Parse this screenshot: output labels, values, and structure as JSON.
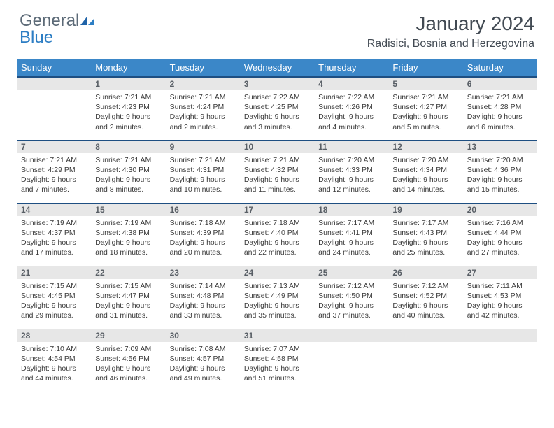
{
  "logo": {
    "text_general": "General",
    "text_blue": "Blue"
  },
  "header": {
    "month_title": "January 2024",
    "location": "Radisici, Bosnia and Herzegovina"
  },
  "colors": {
    "header_bg": "#3b87c8",
    "header_border": "#1e4f82",
    "daynum_bg": "#e7e7e7",
    "daynum_fg": "#595f66",
    "text": "#3a3a3a",
    "logo_gray": "#5c6a77",
    "logo_blue": "#2d7ec4"
  },
  "weekdays": [
    "Sunday",
    "Monday",
    "Tuesday",
    "Wednesday",
    "Thursday",
    "Friday",
    "Saturday"
  ],
  "weeks": [
    [
      null,
      {
        "n": "1",
        "sr": "Sunrise: 7:21 AM",
        "ss": "Sunset: 4:23 PM",
        "d1": "Daylight: 9 hours",
        "d2": "and 2 minutes."
      },
      {
        "n": "2",
        "sr": "Sunrise: 7:21 AM",
        "ss": "Sunset: 4:24 PM",
        "d1": "Daylight: 9 hours",
        "d2": "and 2 minutes."
      },
      {
        "n": "3",
        "sr": "Sunrise: 7:22 AM",
        "ss": "Sunset: 4:25 PM",
        "d1": "Daylight: 9 hours",
        "d2": "and 3 minutes."
      },
      {
        "n": "4",
        "sr": "Sunrise: 7:22 AM",
        "ss": "Sunset: 4:26 PM",
        "d1": "Daylight: 9 hours",
        "d2": "and 4 minutes."
      },
      {
        "n": "5",
        "sr": "Sunrise: 7:21 AM",
        "ss": "Sunset: 4:27 PM",
        "d1": "Daylight: 9 hours",
        "d2": "and 5 minutes."
      },
      {
        "n": "6",
        "sr": "Sunrise: 7:21 AM",
        "ss": "Sunset: 4:28 PM",
        "d1": "Daylight: 9 hours",
        "d2": "and 6 minutes."
      }
    ],
    [
      {
        "n": "7",
        "sr": "Sunrise: 7:21 AM",
        "ss": "Sunset: 4:29 PM",
        "d1": "Daylight: 9 hours",
        "d2": "and 7 minutes."
      },
      {
        "n": "8",
        "sr": "Sunrise: 7:21 AM",
        "ss": "Sunset: 4:30 PM",
        "d1": "Daylight: 9 hours",
        "d2": "and 8 minutes."
      },
      {
        "n": "9",
        "sr": "Sunrise: 7:21 AM",
        "ss": "Sunset: 4:31 PM",
        "d1": "Daylight: 9 hours",
        "d2": "and 10 minutes."
      },
      {
        "n": "10",
        "sr": "Sunrise: 7:21 AM",
        "ss": "Sunset: 4:32 PM",
        "d1": "Daylight: 9 hours",
        "d2": "and 11 minutes."
      },
      {
        "n": "11",
        "sr": "Sunrise: 7:20 AM",
        "ss": "Sunset: 4:33 PM",
        "d1": "Daylight: 9 hours",
        "d2": "and 12 minutes."
      },
      {
        "n": "12",
        "sr": "Sunrise: 7:20 AM",
        "ss": "Sunset: 4:34 PM",
        "d1": "Daylight: 9 hours",
        "d2": "and 14 minutes."
      },
      {
        "n": "13",
        "sr": "Sunrise: 7:20 AM",
        "ss": "Sunset: 4:36 PM",
        "d1": "Daylight: 9 hours",
        "d2": "and 15 minutes."
      }
    ],
    [
      {
        "n": "14",
        "sr": "Sunrise: 7:19 AM",
        "ss": "Sunset: 4:37 PM",
        "d1": "Daylight: 9 hours",
        "d2": "and 17 minutes."
      },
      {
        "n": "15",
        "sr": "Sunrise: 7:19 AM",
        "ss": "Sunset: 4:38 PM",
        "d1": "Daylight: 9 hours",
        "d2": "and 18 minutes."
      },
      {
        "n": "16",
        "sr": "Sunrise: 7:18 AM",
        "ss": "Sunset: 4:39 PM",
        "d1": "Daylight: 9 hours",
        "d2": "and 20 minutes."
      },
      {
        "n": "17",
        "sr": "Sunrise: 7:18 AM",
        "ss": "Sunset: 4:40 PM",
        "d1": "Daylight: 9 hours",
        "d2": "and 22 minutes."
      },
      {
        "n": "18",
        "sr": "Sunrise: 7:17 AM",
        "ss": "Sunset: 4:41 PM",
        "d1": "Daylight: 9 hours",
        "d2": "and 24 minutes."
      },
      {
        "n": "19",
        "sr": "Sunrise: 7:17 AM",
        "ss": "Sunset: 4:43 PM",
        "d1": "Daylight: 9 hours",
        "d2": "and 25 minutes."
      },
      {
        "n": "20",
        "sr": "Sunrise: 7:16 AM",
        "ss": "Sunset: 4:44 PM",
        "d1": "Daylight: 9 hours",
        "d2": "and 27 minutes."
      }
    ],
    [
      {
        "n": "21",
        "sr": "Sunrise: 7:15 AM",
        "ss": "Sunset: 4:45 PM",
        "d1": "Daylight: 9 hours",
        "d2": "and 29 minutes."
      },
      {
        "n": "22",
        "sr": "Sunrise: 7:15 AM",
        "ss": "Sunset: 4:47 PM",
        "d1": "Daylight: 9 hours",
        "d2": "and 31 minutes."
      },
      {
        "n": "23",
        "sr": "Sunrise: 7:14 AM",
        "ss": "Sunset: 4:48 PM",
        "d1": "Daylight: 9 hours",
        "d2": "and 33 minutes."
      },
      {
        "n": "24",
        "sr": "Sunrise: 7:13 AM",
        "ss": "Sunset: 4:49 PM",
        "d1": "Daylight: 9 hours",
        "d2": "and 35 minutes."
      },
      {
        "n": "25",
        "sr": "Sunrise: 7:12 AM",
        "ss": "Sunset: 4:50 PM",
        "d1": "Daylight: 9 hours",
        "d2": "and 37 minutes."
      },
      {
        "n": "26",
        "sr": "Sunrise: 7:12 AM",
        "ss": "Sunset: 4:52 PM",
        "d1": "Daylight: 9 hours",
        "d2": "and 40 minutes."
      },
      {
        "n": "27",
        "sr": "Sunrise: 7:11 AM",
        "ss": "Sunset: 4:53 PM",
        "d1": "Daylight: 9 hours",
        "d2": "and 42 minutes."
      }
    ],
    [
      {
        "n": "28",
        "sr": "Sunrise: 7:10 AM",
        "ss": "Sunset: 4:54 PM",
        "d1": "Daylight: 9 hours",
        "d2": "and 44 minutes."
      },
      {
        "n": "29",
        "sr": "Sunrise: 7:09 AM",
        "ss": "Sunset: 4:56 PM",
        "d1": "Daylight: 9 hours",
        "d2": "and 46 minutes."
      },
      {
        "n": "30",
        "sr": "Sunrise: 7:08 AM",
        "ss": "Sunset: 4:57 PM",
        "d1": "Daylight: 9 hours",
        "d2": "and 49 minutes."
      },
      {
        "n": "31",
        "sr": "Sunrise: 7:07 AM",
        "ss": "Sunset: 4:58 PM",
        "d1": "Daylight: 9 hours",
        "d2": "and 51 minutes."
      },
      null,
      null,
      null
    ]
  ]
}
